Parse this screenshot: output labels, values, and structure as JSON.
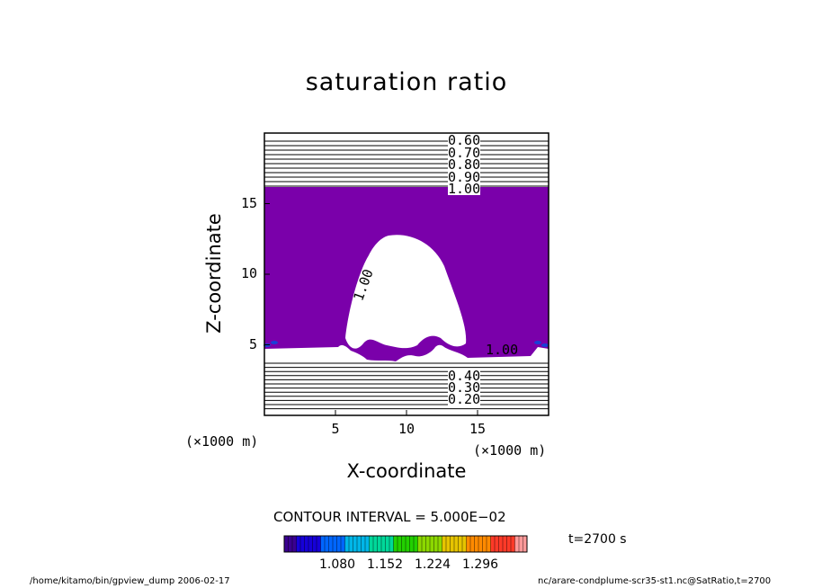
{
  "colors": {
    "fill": "#7a00aa",
    "line": "#000000",
    "blue_patch": "#1a3fd6"
  },
  "chart_data": {
    "type": "contour",
    "title": "saturation ratio",
    "xlabel": "X-coordinate",
    "ylabel": "Z-coordinate",
    "x_unit_label": "(×1000 m)",
    "y_unit_label": "(×1000 m)",
    "xlim": [
      0,
      20
    ],
    "ylim": [
      0,
      20
    ],
    "x_ticks": [
      5,
      10,
      15
    ],
    "y_ticks": [
      5,
      10,
      15
    ],
    "grid": false,
    "contour_interval_text": "CONTOUR INTERVAL = 5.000E−02",
    "top_contour_labels": [
      "0.60",
      "0.70",
      "0.80",
      "0.90",
      "1.00"
    ],
    "bottom_contour_labels": [
      "0.40",
      "0.30",
      "0.20"
    ],
    "inner_labels": [
      "1.00",
      "1.00"
    ],
    "colorbar_ticks": [
      "1.080",
      "1.152",
      "1.224",
      "1.296"
    ],
    "colorbar_colors": [
      "#3a0090",
      "#1600d8",
      "#0066ff",
      "#00b6e8",
      "#00d89a",
      "#22d000",
      "#8cd800",
      "#e6c400",
      "#ff8a00",
      "#ff3a28",
      "#ff9a9a"
    ],
    "time_text": "t=2700 s"
  },
  "footer": {
    "left": "/home/kitamo/bin/gpview_dump  2006-02-17",
    "right": "nc/arare-condplume-scr35-st1.nc@SatRatio,t=2700"
  }
}
